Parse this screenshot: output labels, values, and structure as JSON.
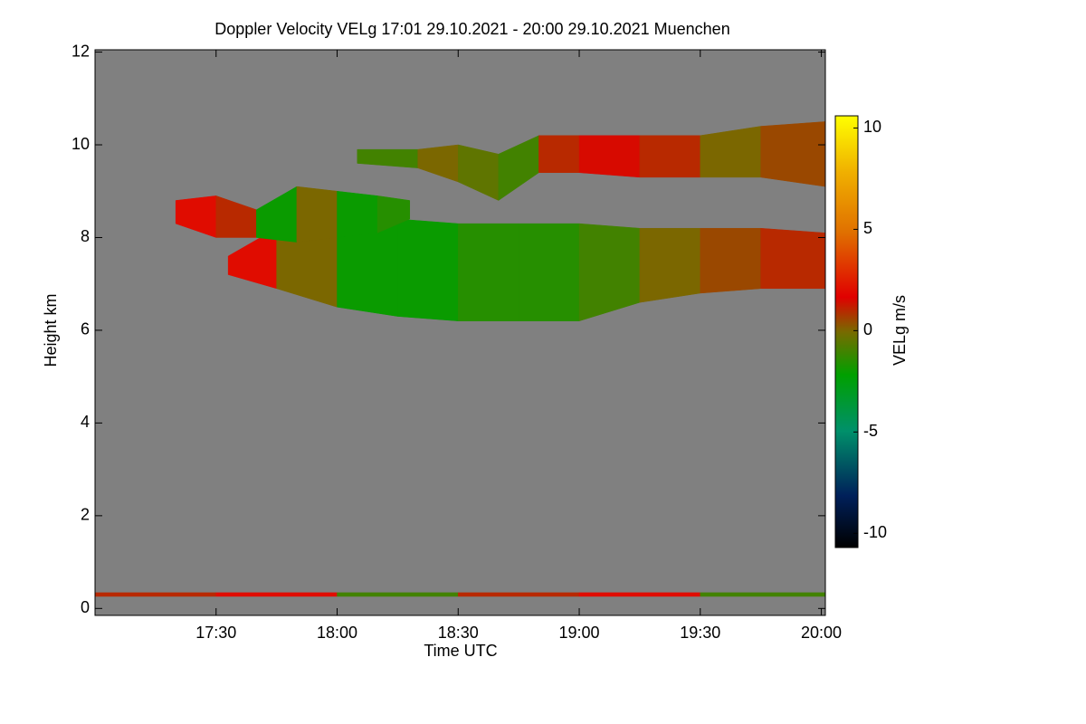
{
  "chart_data": {
    "type": "heatmap",
    "title": "Doppler Velocity VELg   17:01 29.10.2021 - 20:00 29.10.2021 Muenchen",
    "xlabel": "Time UTC",
    "ylabel": "Height km",
    "colorbar_label": "VELg m/s",
    "background": "#808080",
    "xlim": [
      1020,
      1201
    ],
    "xticks": [
      {
        "value": 1050,
        "label": "17:30"
      },
      {
        "value": 1080,
        "label": "18:00"
      },
      {
        "value": 1110,
        "label": "18:30"
      },
      {
        "value": 1140,
        "label": "19:00"
      },
      {
        "value": 1170,
        "label": "19:30"
      },
      {
        "value": 1200,
        "label": "20:00"
      }
    ],
    "ylim": [
      -0.15,
      12.05
    ],
    "yticks": [
      0,
      2,
      4,
      6,
      8,
      10,
      12
    ],
    "clim": [
      -10.7,
      10.6
    ],
    "cticks": [
      -10,
      -5,
      0,
      5,
      10
    ],
    "layers": [
      {
        "times": [
          1053,
          1065,
          1080,
          1095,
          1110,
          1125,
          1140,
          1155,
          1170,
          1185,
          1201
        ],
        "base": [
          7.2,
          6.9,
          6.5,
          6.3,
          6.2,
          6.2,
          6.2,
          6.6,
          6.8,
          6.9,
          6.9
        ],
        "top": [
          7.6,
          8.2,
          8.5,
          8.4,
          8.3,
          8.3,
          8.3,
          8.2,
          8.2,
          8.2,
          8.1
        ],
        "values": [
          2,
          0,
          -2,
          -2,
          -1.5,
          -1.5,
          -1,
          0,
          0.5,
          1,
          1.5
        ]
      },
      {
        "times": [
          1040,
          1050,
          1060,
          1070,
          1080,
          1090,
          1098
        ],
        "base": [
          8.3,
          8.0,
          8.0,
          7.9,
          8.0,
          8.1,
          8.4
        ],
        "top": [
          8.8,
          8.9,
          8.6,
          9.1,
          9.0,
          8.9,
          8.8
        ],
        "values": [
          2,
          1,
          -2,
          0,
          -2,
          -1.5,
          -2
        ]
      },
      {
        "times": [
          1085,
          1100,
          1110,
          1120,
          1130,
          1140,
          1155,
          1170,
          1185,
          1201
        ],
        "base": [
          9.6,
          9.5,
          9.2,
          8.8,
          9.4,
          9.4,
          9.3,
          9.3,
          9.3,
          9.1
        ],
        "top": [
          9.9,
          9.9,
          10.0,
          9.8,
          10.2,
          10.2,
          10.2,
          10.2,
          10.4,
          10.5
        ],
        "values": [
          -1,
          0,
          -0.5,
          -1,
          1,
          1.5,
          1,
          0,
          0.5,
          1
        ]
      },
      {
        "times": [
          1020,
          1050,
          1080,
          1110,
          1140,
          1170,
          1201
        ],
        "base": [
          0.26,
          0.26,
          0.26,
          0.26,
          0.26,
          0.26,
          0.26
        ],
        "top": [
          0.34,
          0.34,
          0.34,
          0.34,
          0.34,
          0.34,
          0.34
        ],
        "values": [
          1,
          2,
          -1,
          1,
          2,
          -1,
          1
        ]
      }
    ]
  }
}
